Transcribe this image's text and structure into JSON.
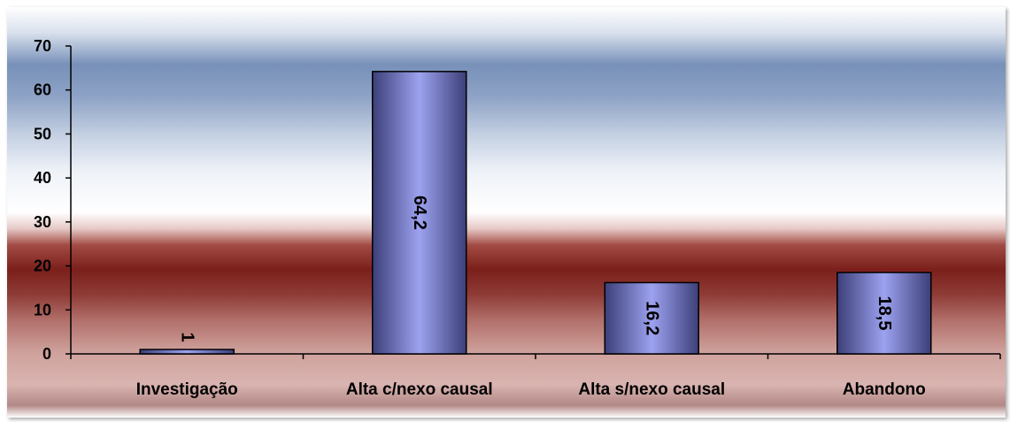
{
  "chart_data": {
    "type": "bar",
    "categories": [
      "Investigação",
      "Alta c/nexo causal",
      "Alta s/nexo causal",
      "Abandono"
    ],
    "values": [
      1,
      64.2,
      16.2,
      18.5
    ],
    "value_labels": [
      "1",
      "64,2",
      "16,2",
      "18,5"
    ],
    "yticks": [
      "0",
      "10",
      "20",
      "30",
      "40",
      "50",
      "60",
      "70"
    ],
    "ylim": [
      0,
      70
    ],
    "title": "",
    "xlabel": "",
    "ylabel": "",
    "grid": false,
    "legend": "none",
    "colors": {
      "bar_light": "#c8ccff",
      "bar_mid": "#8b8fe0",
      "bar_dark": "#3c3f78",
      "bar_outline": "#000000"
    }
  }
}
